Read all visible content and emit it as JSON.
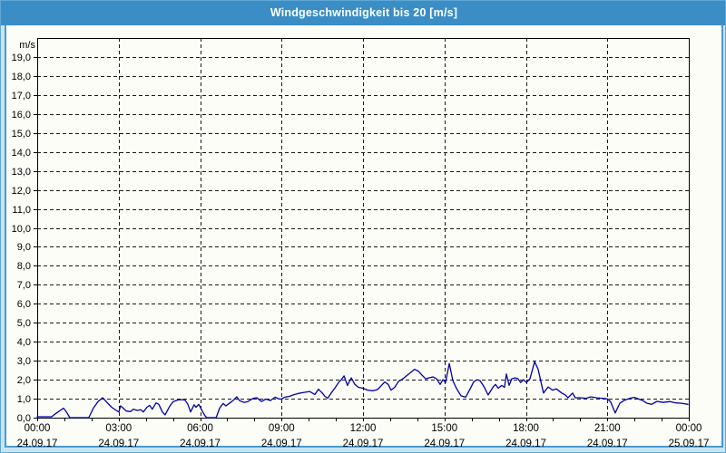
{
  "window": {
    "title": "Windgeschwindigkeit bis 20 [m/s]"
  },
  "colors": {
    "titlebar_bg": "#3a8ec5",
    "titlebar_text": "#ffffff",
    "frame_bg": "#c9e4f5",
    "frame_line": "#4a9ad2",
    "panel_bg": "#fcfdf6",
    "plot_border": "#000000",
    "grid": "#1a1a1a",
    "tick": "#000000",
    "label": "#000000",
    "line": "#0000a8"
  },
  "chart_data": {
    "type": "line",
    "title": "Windgeschwindigkeit bis 20 [m/s]",
    "unit_label": "m/s",
    "legend": "none",
    "grid": "dashed",
    "y_axis": {
      "min": 0,
      "max": 20,
      "tick_step": 1,
      "labeled_max": 19,
      "decimal_comma": true
    },
    "x_axis": {
      "hours_span": 24,
      "grid_hours": 3,
      "minor_tick_hours": 1,
      "ticks": [
        {
          "time": "00:00",
          "date": "24.09.17"
        },
        {
          "time": "03:00",
          "date": "24.09.17"
        },
        {
          "time": "06:00",
          "date": "24.09.17"
        },
        {
          "time": "09:00",
          "date": "24.09.17"
        },
        {
          "time": "12:00",
          "date": "24.09.17"
        },
        {
          "time": "15:00",
          "date": "24.09.17"
        },
        {
          "time": "18:00",
          "date": "24.09.17"
        },
        {
          "time": "21:00",
          "date": "24.09.17"
        },
        {
          "time": "00:00",
          "date": "25.09.17"
        }
      ]
    },
    "series": [
      {
        "name": "Windgeschwindigkeit",
        "unit": "m/s",
        "points": [
          [
            0,
            0.05
          ],
          [
            0.53,
            0.05
          ],
          [
            0.67,
            0.2
          ],
          [
            0.97,
            0.5
          ],
          [
            1.1,
            0.25
          ],
          [
            1.2,
            0
          ],
          [
            1.9,
            0
          ],
          [
            2.07,
            0.5
          ],
          [
            2.24,
            0.85
          ],
          [
            2.41,
            1.05
          ],
          [
            2.57,
            0.8
          ],
          [
            2.74,
            0.55
          ],
          [
            2.91,
            0.38
          ],
          [
            3.01,
            0.3
          ],
          [
            3.07,
            0.62
          ],
          [
            3.17,
            0.5
          ],
          [
            3.28,
            0.35
          ],
          [
            3.44,
            0.32
          ],
          [
            3.54,
            0.45
          ],
          [
            3.68,
            0.38
          ],
          [
            3.81,
            0.42
          ],
          [
            3.91,
            0.3
          ],
          [
            4.04,
            0.55
          ],
          [
            4.14,
            0.65
          ],
          [
            4.24,
            0.45
          ],
          [
            4.38,
            0.78
          ],
          [
            4.48,
            0.7
          ],
          [
            4.61,
            0.3
          ],
          [
            4.71,
            0.15
          ],
          [
            4.88,
            0.6
          ],
          [
            5.01,
            0.85
          ],
          [
            5.18,
            0.93
          ],
          [
            5.35,
            0.95
          ],
          [
            5.45,
            0.92
          ],
          [
            5.55,
            0.7
          ],
          [
            5.65,
            0.3
          ],
          [
            5.78,
            0.68
          ],
          [
            5.85,
            0.55
          ],
          [
            5.95,
            0.7
          ],
          [
            6.08,
            0.35
          ],
          [
            6.18,
            0.1
          ],
          [
            6.25,
            0
          ],
          [
            6.59,
            0
          ],
          [
            6.72,
            0.5
          ],
          [
            6.85,
            0.75
          ],
          [
            6.95,
            0.62
          ],
          [
            7.12,
            0.8
          ],
          [
            7.25,
            0.95
          ],
          [
            7.35,
            1.1
          ],
          [
            7.45,
            0.9
          ],
          [
            7.62,
            0.8
          ],
          [
            7.76,
            0.85
          ],
          [
            7.96,
            1.02
          ],
          [
            8.09,
            1.05
          ],
          [
            8.26,
            0.85
          ],
          [
            8.42,
            0.98
          ],
          [
            8.59,
            0.9
          ],
          [
            8.76,
            1.08
          ],
          [
            8.89,
            1.0
          ],
          [
            8.99,
            0.98
          ],
          [
            9.12,
            1.08
          ],
          [
            9.29,
            1.12
          ],
          [
            9.43,
            1.2
          ],
          [
            9.63,
            1.28
          ],
          [
            9.83,
            1.33
          ],
          [
            10.03,
            1.38
          ],
          [
            10.23,
            1.22
          ],
          [
            10.36,
            1.5
          ],
          [
            10.5,
            1.3
          ],
          [
            10.6,
            1.12
          ],
          [
            10.7,
            1.02
          ],
          [
            10.83,
            1.3
          ],
          [
            10.96,
            1.55
          ],
          [
            11.1,
            1.85
          ],
          [
            11.2,
            2.0
          ],
          [
            11.3,
            2.2
          ],
          [
            11.43,
            1.7
          ],
          [
            11.57,
            2.1
          ],
          [
            11.7,
            1.75
          ],
          [
            11.83,
            1.6
          ],
          [
            12.0,
            1.55
          ],
          [
            12.17,
            1.45
          ],
          [
            12.37,
            1.42
          ],
          [
            12.53,
            1.48
          ],
          [
            12.67,
            1.68
          ],
          [
            12.8,
            1.88
          ],
          [
            12.93,
            1.75
          ],
          [
            13.03,
            1.45
          ],
          [
            13.17,
            1.6
          ],
          [
            13.3,
            1.9
          ],
          [
            13.47,
            2.05
          ],
          [
            13.64,
            2.25
          ],
          [
            13.77,
            2.4
          ],
          [
            13.9,
            2.55
          ],
          [
            14.04,
            2.45
          ],
          [
            14.17,
            2.25
          ],
          [
            14.31,
            2.05
          ],
          [
            14.44,
            2.1
          ],
          [
            14.57,
            2.15
          ],
          [
            14.71,
            2.05
          ],
          [
            14.84,
            1.75
          ],
          [
            14.94,
            2.0
          ],
          [
            15.04,
            1.85
          ],
          [
            15.18,
            2.85
          ],
          [
            15.31,
            1.95
          ],
          [
            15.44,
            1.55
          ],
          [
            15.61,
            1.15
          ],
          [
            15.78,
            1.08
          ],
          [
            15.94,
            1.5
          ],
          [
            16.08,
            1.9
          ],
          [
            16.21,
            2.0
          ],
          [
            16.31,
            1.95
          ],
          [
            16.45,
            1.65
          ],
          [
            16.61,
            1.2
          ],
          [
            16.81,
            1.65
          ],
          [
            16.88,
            1.75
          ],
          [
            16.98,
            1.55
          ],
          [
            17.11,
            1.7
          ],
          [
            17.21,
            1.6
          ],
          [
            17.28,
            2.3
          ],
          [
            17.38,
            1.7
          ],
          [
            17.48,
            2.05
          ],
          [
            17.61,
            2.1
          ],
          [
            17.71,
            2.05
          ],
          [
            17.81,
            1.85
          ],
          [
            17.91,
            2.0
          ],
          [
            18.02,
            1.85
          ],
          [
            18.15,
            2.05
          ],
          [
            18.32,
            2.95
          ],
          [
            18.45,
            2.55
          ],
          [
            18.55,
            1.9
          ],
          [
            18.65,
            1.3
          ],
          [
            18.82,
            1.62
          ],
          [
            18.98,
            1.45
          ],
          [
            19.12,
            1.52
          ],
          [
            19.32,
            1.3
          ],
          [
            19.45,
            1.2
          ],
          [
            19.55,
            1.05
          ],
          [
            19.72,
            1.3
          ],
          [
            19.82,
            1.05
          ],
          [
            19.99,
            1.05
          ],
          [
            20.22,
            1.02
          ],
          [
            20.39,
            1.1
          ],
          [
            20.59,
            1.05
          ],
          [
            20.79,
            1.02
          ],
          [
            20.99,
            1.0
          ],
          [
            21.12,
            0.84
          ],
          [
            21.29,
            0.25
          ],
          [
            21.46,
            0.76
          ],
          [
            21.63,
            0.92
          ],
          [
            21.83,
            1.02
          ],
          [
            21.99,
            1.07
          ],
          [
            22.13,
            1.0
          ],
          [
            22.3,
            0.9
          ],
          [
            22.46,
            0.76
          ],
          [
            22.63,
            0.7
          ],
          [
            22.83,
            0.86
          ],
          [
            23.06,
            0.8
          ],
          [
            23.3,
            0.85
          ],
          [
            23.53,
            0.78
          ],
          [
            23.73,
            0.76
          ],
          [
            23.97,
            0.7
          ]
        ]
      }
    ]
  }
}
